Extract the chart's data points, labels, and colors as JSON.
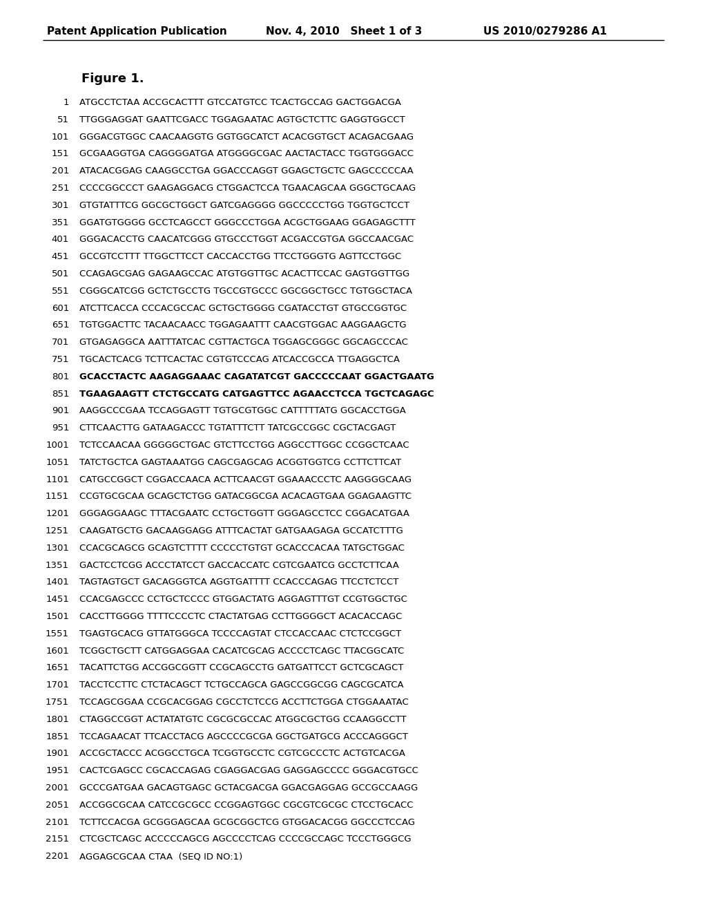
{
  "header_left": "Patent Application Publication",
  "header_mid": "Nov. 4, 2010   Sheet 1 of 3",
  "header_right": "US 2010/0279286 A1",
  "figure_label": "Figure 1.",
  "sequence_lines": [
    [
      "1",
      "ATGCCTCTAA ACCGCACTTT GTCCATGTCC TCACTGCCAG GACTGGACGA"
    ],
    [
      "51",
      "TTGGGAGGAT GAATTCGACC TGGAGAATAC AGTGCTCTTC GAGGTGGCCT"
    ],
    [
      "101",
      "GGGACGTGGC CAACAAGGTG GGTGGCATCT ACACGGTGCT ACAGACGAAG"
    ],
    [
      "151",
      "GCGAAGGTGA CAGGGGATGA ATGGGGCGAC AACTACTACC TGGTGGGACC"
    ],
    [
      "201",
      "ATACACGGAG CAAGGCCTGA GGACCCAGGT GGAGCTGCTC GAGCCCCCAA"
    ],
    [
      "251",
      "CCCCGGCCCT GAAGAGGACG CTGGACTCCA TGAACAGCAA GGGCTGCAAG"
    ],
    [
      "301",
      "GTGTATTTCG GGCGCTGGCT GATCGAGGGG GGCCCCCTGG TGGTGCTCCT"
    ],
    [
      "351",
      "GGATGTGGGG GCCTCAGCCT GGGCCCTGGA ACGCTGGAAG GGAGAGCTTT"
    ],
    [
      "401",
      "GGGACACCTG CAACATCGGG GTGCCCTGGT ACGACCGTGA GGCCAACGAC"
    ],
    [
      "451",
      "GCCGTCCTTT TTGGCTTCCT CACCACCTGG TTCCTGGGTG AGTTCCTGGC"
    ],
    [
      "501",
      "CCAGAGCGAG GAGAAGCCAC ATGTGGTTGC ACACTTCCAC GAGTGGTTGG"
    ],
    [
      "551",
      "CGGGCATCGG GCTCTGCCTG TGCCGTGCCC GGCGGCTGCC TGTGGCTACA"
    ],
    [
      "601",
      "ATCTTCACCA CCCACGCCAC GCTGCTGGGG CGATACCTGT GTGCCGGTGC"
    ],
    [
      "651",
      "TGTGGACTTC TACAACAACC TGGAGAATTT CAACGTGGAC AAGGAAGCTG"
    ],
    [
      "701",
      "GTGAGAGGCA AATTTATCAC CGTTACTGCA TGGAGCGGGC GGCAGCCCAC"
    ],
    [
      "751",
      "TGCACTCACG TCTTCACTAC CGTGTCCCAG ATCACCGCCA TTGAGGCTCA"
    ],
    [
      "801",
      "GCACCTACTC AAGAGGAAAC CAGATATCGT GACCCCCAAT GGACTGAATG"
    ],
    [
      "851",
      "TGAAGAAGTT CTCTGCCATG CATGAGTTCC AGAACCTCCA TGCTCAGAGC"
    ],
    [
      "901",
      "AAGGCCCGAA TCCAGGAGTT TGTGCGTGGC CATTTTTATG GGCACCTGGA"
    ],
    [
      "951",
      "CTTCAACTTG GATAAGACCC TGTATTTCTT TATCGCCGGC CGCTACGAGT"
    ],
    [
      "1001",
      "TCTCCAACAA GGGGGCTGAC GTCTTCCTGG AGGCCTTGGC CCGGCTCAAC"
    ],
    [
      "1051",
      "TATCTGCTCA GAGTAAATGG CAGCGAGCAG ACGGTGGTCG CCTTCTTCAT"
    ],
    [
      "1101",
      "CATGCCGGCT CGGACCAACA ACTTCAACGT GGAAACCCTC AAGGGGCAAG"
    ],
    [
      "1151",
      "CCGTGCGCAA GCAGCTCTGG GATACGGCGA ACACAGTGAA GGAGAAGTTC"
    ],
    [
      "1201",
      "GGGAGGAAGC TTTACGAATC CCTGCTGGTT GGGAGCCTCC CGGACATGAA"
    ],
    [
      "1251",
      "CAAGATGCTG GACAAGGAGG ATTTCACTAT GATGAAGAGA GCCATCTTTG"
    ],
    [
      "1301",
      "CCACGCAGCG GCAGTCTTTT CCCCCTGTGT GCACCCACAA TATGCTGGAC"
    ],
    [
      "1351",
      "GACTCCTCGG ACCCTATCCT GACCACCATC CGTCGAATCG GCCTCTTCAA"
    ],
    [
      "1401",
      "TAGTAGTGCT GACAGGGTCA AGGTGATTTT CCACCCAGAG TTCCTCTCCT"
    ],
    [
      "1451",
      "CCACGAGCCC CCTGCTCCCC GTGGACTATG AGGAGTTTGT CCGTGGCTGC"
    ],
    [
      "1501",
      "CACCTTGGGG TTTTCCCCTC CTACTATGAG CCTTGGGGCT ACACACCAGC"
    ],
    [
      "1551",
      "TGAGTGCACG GTTATGGGCA TCCCCAGTAT CTCCACCAAC CTCTCCGGCT"
    ],
    [
      "1601",
      "TCGGCTGCTT CATGGAGGAA CACATCGCAG ACCCCTCAGC TTACGGCATC"
    ],
    [
      "1651",
      "TACATTCTGG ACCGGCGGTT CCGCAGCCTG GATGATTCCT GCTCGCAGCT"
    ],
    [
      "1701",
      "TACCTCCTTC CTCTACAGCT TCTGCCAGCA GAGCCGGCGG CAGCGCATCA"
    ],
    [
      "1751",
      "TCCAGCGGAA CCGCACGGAG CGCCTCTCCG ACCTTCTGGA CTGGAAATAC"
    ],
    [
      "1801",
      "CTAGGCCGGT ACTATATGTC CGCGCGCCAC ATGGCGCTGG CCAAGGCCTT"
    ],
    [
      "1851",
      "TCCAGAACAT TTCACCTACG AGCCCCGCGA GGCTGATGCG ACCCAGGGCT"
    ],
    [
      "1901",
      "ACCGCTACCC ACGGCCTGCA TCGGTGCCTC CGTCGCCCTC ACTGTCACGA"
    ],
    [
      "1951",
      "CACTCGAGCC CGCACCAGAG CGAGGACGAG GAGGAGCCCC GGGACGTGCC"
    ],
    [
      "2001",
      "GCCCGATGAA GACAGTGAGC GCTACGACGA GGACGAGGAG GCCGCCAAGG"
    ],
    [
      "2051",
      "ACCGGCGCAA CATCCGCGCC CCGGAGTGGC CGCGTCGCGC CTCCTGCACC"
    ],
    [
      "2101",
      "TCTTCCACGA GCGGGAGCAA GCGCGGCTCG GTGGACACGG GGCCCTCCAG"
    ],
    [
      "2151",
      "CTCGCTCAGC ACCCCCAGCG AGCCCCTCAG CCCCGCCAGC TCCCTGGGCG"
    ],
    [
      "2201",
      "AGGAGCGCAA CTAA  (SEQ ID NO:1)"
    ]
  ],
  "bold_lines": [
    801,
    851
  ],
  "background_color": "#ffffff",
  "text_color": "#000000",
  "header_fontsize": 11,
  "seq_fontsize": 9.5,
  "fig_label_fontsize": 13
}
